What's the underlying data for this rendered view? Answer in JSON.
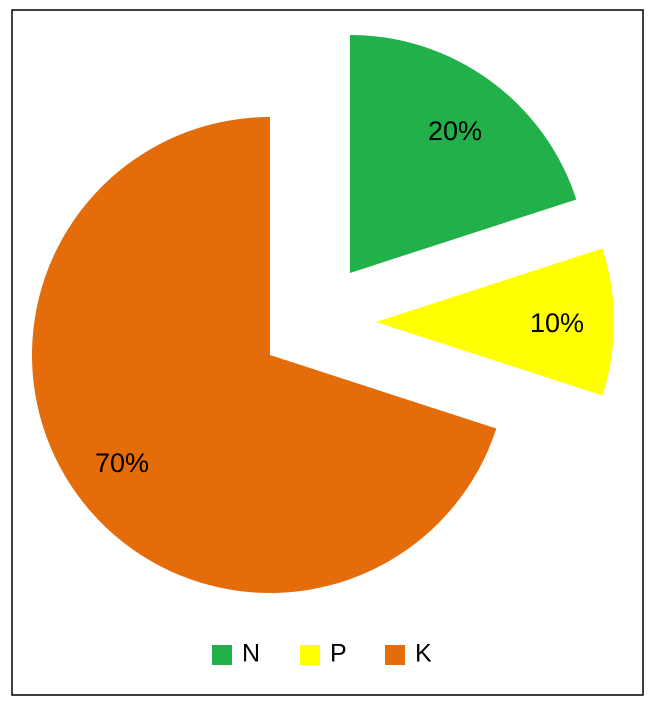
{
  "chart_data": {
    "type": "pie",
    "categories": [
      "N",
      "P",
      "K"
    ],
    "values": [
      20,
      10,
      70
    ],
    "value_labels": [
      "20%",
      "10%",
      "70%"
    ],
    "colors": [
      "#22b04b",
      "#ffff00",
      "#e46c0a"
    ],
    "legend": "bottom"
  }
}
